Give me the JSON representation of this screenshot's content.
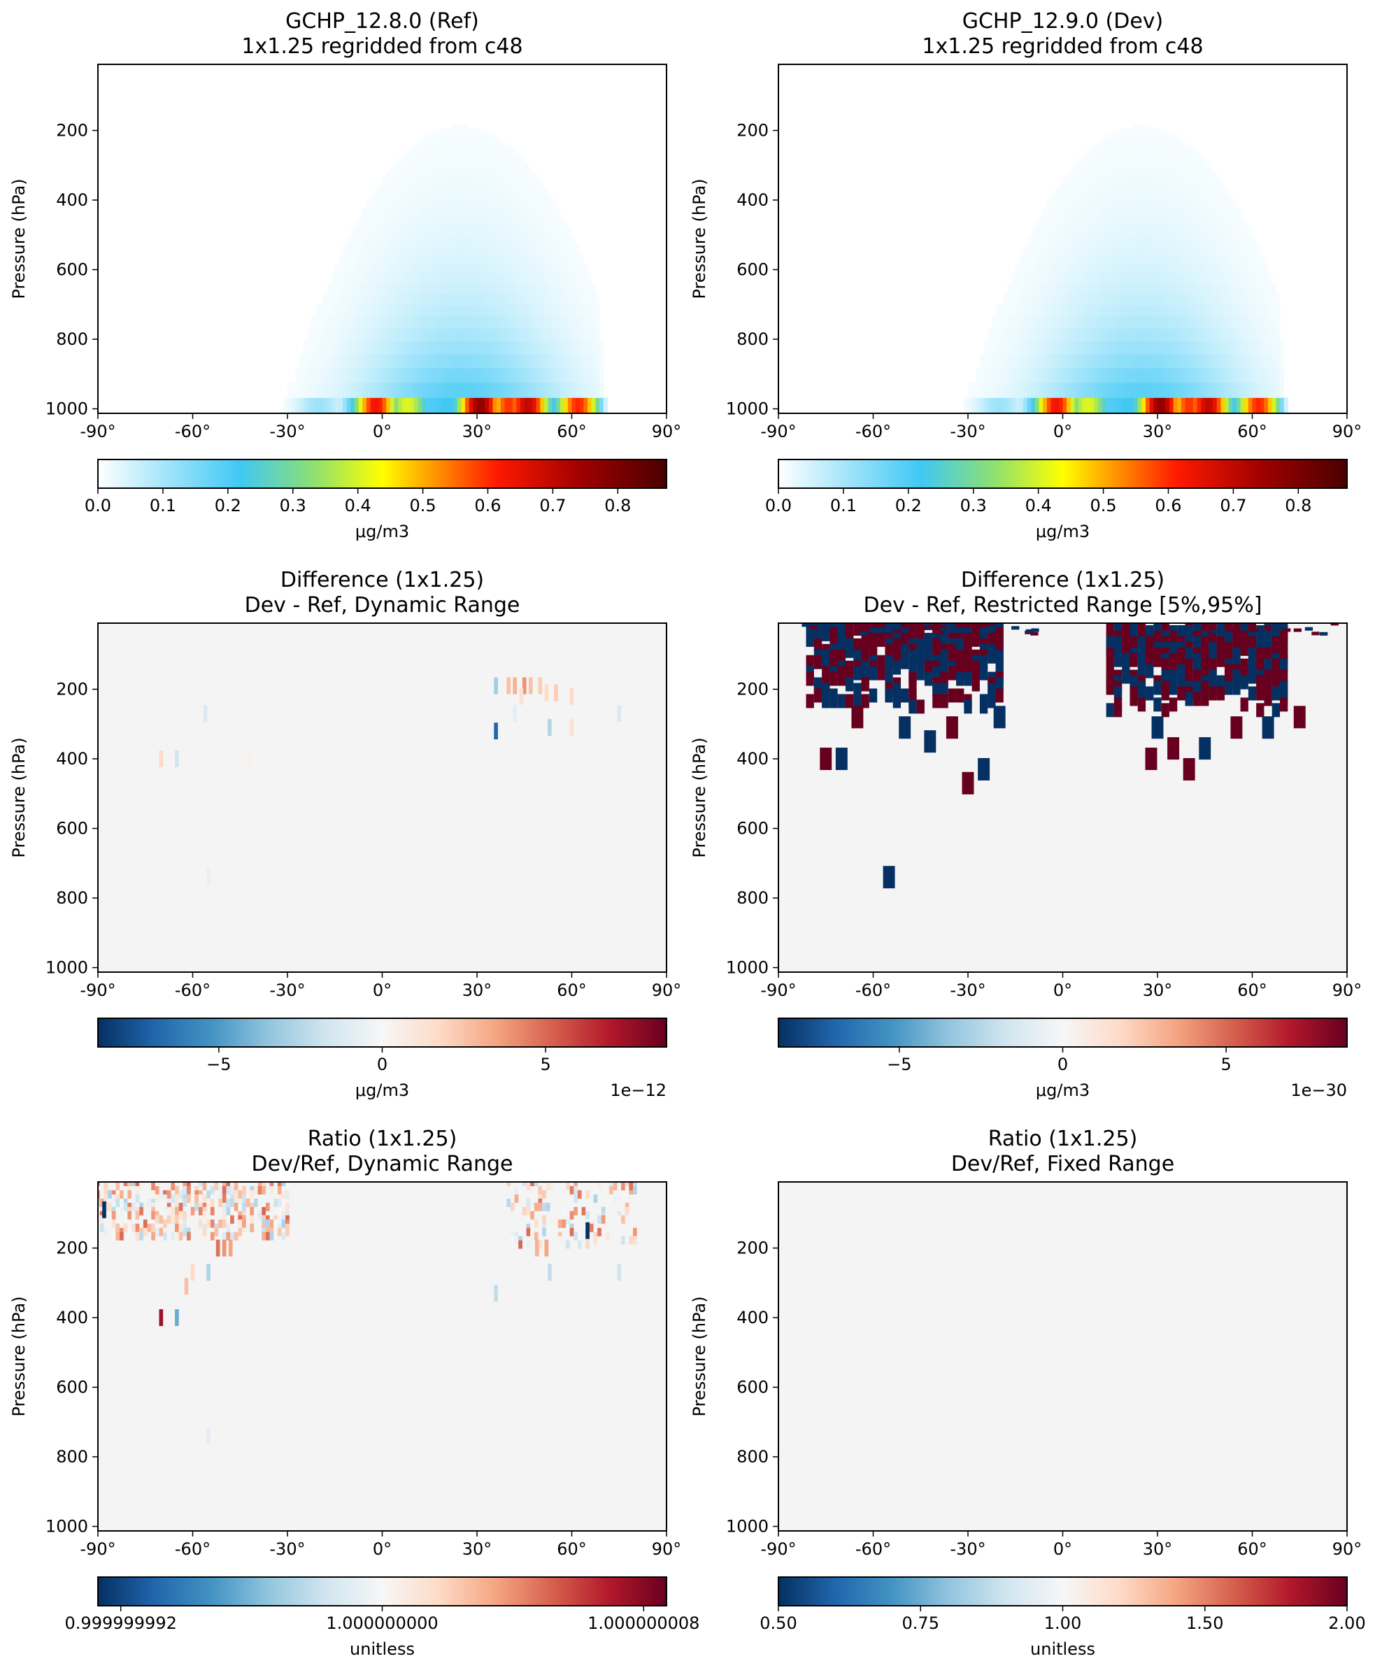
{
  "figure": {
    "background": "#ffffff"
  },
  "chart_data": [
    {
      "type": "heatmap",
      "title": "GCHP_12.8.0 (Ref)",
      "subtitle": "1x1.25 regridded from c48",
      "ylabel": "Pressure (hPa)",
      "xticks": [
        "-90°",
        "-60°",
        "-30°",
        "0°",
        "30°",
        "60°",
        "90°"
      ],
      "yticks": [
        "200",
        "400",
        "600",
        "800",
        "1000"
      ],
      "xlim": [
        -90,
        90
      ],
      "ylim": [
        1013,
        10
      ],
      "colormap": "WhGrYlRd",
      "colorbar": {
        "ticks": [
          "0.0",
          "0.1",
          "0.2",
          "0.3",
          "0.4",
          "0.5",
          "0.6",
          "0.7",
          "0.8"
        ],
        "range": [
          0,
          0.875
        ],
        "label": "μg/m3",
        "offset": ""
      },
      "field": "concentration",
      "blobs": [
        {
          "lat": -2,
          "p": 1000,
          "value": 0.85
        },
        {
          "lat": 8,
          "p": 1000,
          "value": 0.55
        },
        {
          "lat": 31,
          "p": 995,
          "value": 0.82
        },
        {
          "lat": 40,
          "p": 1000,
          "value": 0.8
        },
        {
          "lat": 46,
          "p": 985,
          "value": 0.7
        },
        {
          "lat": 62,
          "p": 995,
          "value": 0.65
        },
        {
          "lat": 20,
          "p": 1000,
          "value": 0.3
        },
        {
          "lat": -20,
          "p": 1000,
          "value": 0.15
        }
      ]
    },
    {
      "type": "heatmap",
      "title": "GCHP_12.9.0 (Dev)",
      "subtitle": "1x1.25 regridded from c48",
      "ylabel": "Pressure (hPa)",
      "xticks": [
        "-90°",
        "-60°",
        "-30°",
        "0°",
        "30°",
        "60°",
        "90°"
      ],
      "yticks": [
        "200",
        "400",
        "600",
        "800",
        "1000"
      ],
      "xlim": [
        -90,
        90
      ],
      "ylim": [
        1013,
        10
      ],
      "colormap": "WhGrYlRd",
      "colorbar": {
        "ticks": [
          "0.0",
          "0.1",
          "0.2",
          "0.3",
          "0.4",
          "0.5",
          "0.6",
          "0.7",
          "0.8"
        ],
        "range": [
          0,
          0.875
        ],
        "label": "μg/m3",
        "offset": ""
      },
      "field": "concentration",
      "blobs": [
        {
          "lat": -2,
          "p": 1000,
          "value": 0.85
        },
        {
          "lat": 8,
          "p": 1000,
          "value": 0.55
        },
        {
          "lat": 31,
          "p": 995,
          "value": 0.82
        },
        {
          "lat": 40,
          "p": 1000,
          "value": 0.8
        },
        {
          "lat": 46,
          "p": 985,
          "value": 0.7
        },
        {
          "lat": 62,
          "p": 995,
          "value": 0.65
        },
        {
          "lat": 20,
          "p": 1000,
          "value": 0.3
        },
        {
          "lat": -20,
          "p": 1000,
          "value": 0.15
        }
      ]
    },
    {
      "type": "heatmap",
      "title": "Difference (1x1.25)",
      "subtitle": "Dev - Ref, Dynamic Range",
      "ylabel": "Pressure (hPa)",
      "xticks": [
        "-90°",
        "-60°",
        "-30°",
        "0°",
        "30°",
        "60°",
        "90°"
      ],
      "yticks": [
        "200",
        "400",
        "600",
        "800",
        "1000"
      ],
      "xlim": [
        -90,
        90
      ],
      "ylim": [
        1013,
        10
      ],
      "colormap": "RdBu_r",
      "colorbar": {
        "ticks": [
          "−5",
          "0",
          "5"
        ],
        "tick_values": [
          -5,
          0,
          5
        ],
        "range": [
          -8.7,
          8.7
        ],
        "label": "μg/m3",
        "offset": "1e−12"
      },
      "field": "sparse",
      "cells": [
        {
          "lat": 36,
          "p": 190,
          "value": -0.35
        },
        {
          "lat": 40,
          "p": 190,
          "value": 0.3
        },
        {
          "lat": 42,
          "p": 190,
          "value": 0.35
        },
        {
          "lat": 45,
          "p": 190,
          "value": 0.45
        },
        {
          "lat": 47,
          "p": 190,
          "value": 0.3
        },
        {
          "lat": 50,
          "p": 190,
          "value": 0.25
        },
        {
          "lat": 52,
          "p": 210,
          "value": 0.2
        },
        {
          "lat": 55,
          "p": 210,
          "value": 0.25
        },
        {
          "lat": 60,
          "p": 220,
          "value": 0.2
        },
        {
          "lat": 44,
          "p": 220,
          "value": 0.15
        },
        {
          "lat": 36,
          "p": 320,
          "value": -0.8
        },
        {
          "lat": 53,
          "p": 310,
          "value": -0.3
        },
        {
          "lat": 60,
          "p": 310,
          "value": 0.15
        },
        {
          "lat": 75,
          "p": 270,
          "value": -0.15
        },
        {
          "lat": 42,
          "p": 270,
          "value": -0.1
        },
        {
          "lat": -56,
          "p": 270,
          "value": -0.15
        },
        {
          "lat": -70,
          "p": 400,
          "value": 0.2
        },
        {
          "lat": -65,
          "p": 400,
          "value": -0.2
        },
        {
          "lat": -42,
          "p": 400,
          "value": 0.05
        },
        {
          "lat": -55,
          "p": 740,
          "value": -0.08
        }
      ]
    },
    {
      "type": "heatmap",
      "title": "Difference (1x1.25)",
      "subtitle": "Dev - Ref, Restricted Range [5%,95%]",
      "ylabel": "Pressure (hPa)",
      "xticks": [
        "-90°",
        "-60°",
        "-30°",
        "0°",
        "30°",
        "60°",
        "90°"
      ],
      "yticks": [
        "200",
        "400",
        "600",
        "800",
        "1000"
      ],
      "xlim": [
        -90,
        90
      ],
      "ylim": [
        1013,
        10
      ],
      "colormap": "RdBu_r",
      "colorbar": {
        "ticks": [
          "−5",
          "0",
          "5"
        ],
        "tick_values": [
          -5,
          0,
          5
        ],
        "range": [
          -8.7,
          8.7
        ],
        "label": "μg/m3",
        "offset": "1e−30"
      },
      "field": "restricted",
      "clusters": [
        {
          "lat_min": -80,
          "lat_max": -20,
          "p_min": 10,
          "p_max": 260,
          "density": 0.85
        },
        {
          "lat_min": 15,
          "lat_max": 72,
          "p_min": 20,
          "p_max": 270,
          "density": 0.85
        }
      ],
      "extra_cells": [
        {
          "lat": -75,
          "p": 400,
          "value": 1
        },
        {
          "lat": -70,
          "p": 400,
          "value": -1
        },
        {
          "lat": -65,
          "p": 280,
          "value": 1
        },
        {
          "lat": -50,
          "p": 310,
          "value": -1
        },
        {
          "lat": -42,
          "p": 350,
          "value": -1
        },
        {
          "lat": -35,
          "p": 310,
          "value": 1
        },
        {
          "lat": -30,
          "p": 470,
          "value": 1
        },
        {
          "lat": -25,
          "p": 430,
          "value": -1
        },
        {
          "lat": -20,
          "p": 280,
          "value": -1
        },
        {
          "lat": 30,
          "p": 310,
          "value": -1
        },
        {
          "lat": 35,
          "p": 370,
          "value": 1
        },
        {
          "lat": 40,
          "p": 430,
          "value": 1
        },
        {
          "lat": 45,
          "p": 370,
          "value": -1
        },
        {
          "lat": 55,
          "p": 310,
          "value": 1
        },
        {
          "lat": 65,
          "p": 310,
          "value": -1
        },
        {
          "lat": 75,
          "p": 280,
          "value": 1
        },
        {
          "lat": -55,
          "p": 740,
          "value": -1
        },
        {
          "lat": 28,
          "p": 400,
          "value": 1
        }
      ]
    },
    {
      "type": "heatmap",
      "title": "Ratio (1x1.25)",
      "subtitle": "Dev/Ref, Dynamic Range",
      "ylabel": "Pressure (hPa)",
      "xticks": [
        "-90°",
        "-60°",
        "-30°",
        "0°",
        "30°",
        "60°",
        "90°"
      ],
      "yticks": [
        "200",
        "400",
        "600",
        "800",
        "1000"
      ],
      "xlim": [
        -90,
        90
      ],
      "ylim": [
        1013,
        10
      ],
      "colormap": "RdBu_r",
      "colorbar": {
        "ticks": [
          "0.999999992",
          "1.000000000",
          "1.000000008"
        ],
        "tick_values": [
          0.999999992,
          1.0,
          1.000000008
        ],
        "range": [
          0.9999999913,
          1.0000000087
        ],
        "label": "unitless",
        "offset": ""
      },
      "field": "ratio_sparse",
      "clusters": [
        {
          "lat_min": -90,
          "lat_max": -30,
          "p_min": 10,
          "p_max": 170,
          "density": 0.35
        },
        {
          "lat_min": 40,
          "lat_max": 80,
          "p_min": 10,
          "p_max": 200,
          "density": 0.2
        }
      ],
      "cells": [
        {
          "lat": -70,
          "p": 400,
          "value": 0.85
        },
        {
          "lat": -65,
          "p": 400,
          "value": -0.5
        },
        {
          "lat": -55,
          "p": 270,
          "value": -0.3
        },
        {
          "lat": -60,
          "p": 270,
          "value": 0.2
        },
        {
          "lat": -62,
          "p": 310,
          "value": 0.3
        },
        {
          "lat": -50,
          "p": 200,
          "value": 0.45
        },
        {
          "lat": -52,
          "p": 200,
          "value": 0.55
        },
        {
          "lat": -48,
          "p": 200,
          "value": 0.4
        },
        {
          "lat": -88,
          "p": 90,
          "value": -1.0
        },
        {
          "lat": 65,
          "p": 150,
          "value": -1.0
        },
        {
          "lat": 49,
          "p": 200,
          "value": 0.35
        },
        {
          "lat": 52,
          "p": 200,
          "value": 0.4
        },
        {
          "lat": 36,
          "p": 330,
          "value": -0.25
        },
        {
          "lat": 53,
          "p": 270,
          "value": -0.25
        },
        {
          "lat": 75,
          "p": 270,
          "value": -0.2
        },
        {
          "lat": -55,
          "p": 740,
          "value": -0.1
        }
      ]
    },
    {
      "type": "heatmap",
      "title": "Ratio (1x1.25)",
      "subtitle": "Dev/Ref, Fixed Range",
      "ylabel": "Pressure (hPa)",
      "xticks": [
        "-90°",
        "-60°",
        "-30°",
        "0°",
        "30°",
        "60°",
        "90°"
      ],
      "yticks": [
        "200",
        "400",
        "600",
        "800",
        "1000"
      ],
      "xlim": [
        -90,
        90
      ],
      "ylim": [
        1013,
        10
      ],
      "colormap": "RdBu_r",
      "colorbar": {
        "ticks": [
          "0.50",
          "0.75",
          "1.00",
          "1.50",
          "2.00"
        ],
        "tick_positions": [
          0,
          0.25,
          0.5,
          0.75,
          1.0
        ],
        "range": [
          0,
          1
        ],
        "label": "unitless",
        "offset": ""
      },
      "field": "uniform",
      "value": 1.0
    }
  ]
}
